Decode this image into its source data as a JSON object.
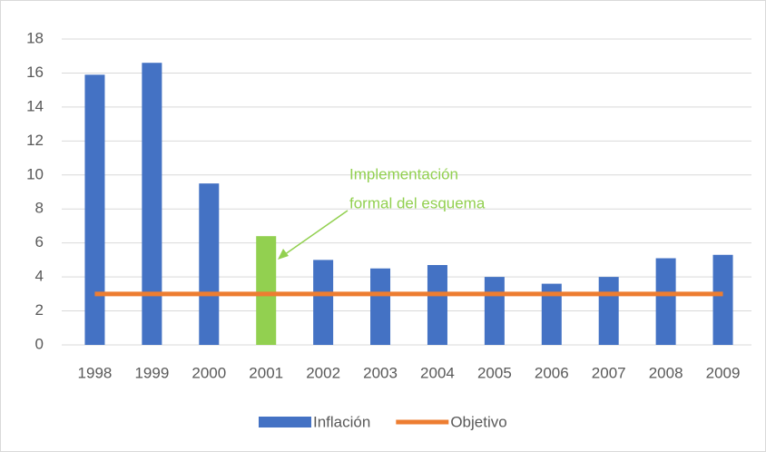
{
  "chart_data": {
    "type": "bar",
    "categories": [
      "1998",
      "1999",
      "2000",
      "2001",
      "2002",
      "2003",
      "2004",
      "2005",
      "2006",
      "2007",
      "2008",
      "2009"
    ],
    "series": [
      {
        "name": "Inflación",
        "type": "bar",
        "color": "#4472c4",
        "point_colors": [
          "#4472c4",
          "#4472c4",
          "#4472c4",
          "#92d050",
          "#4472c4",
          "#4472c4",
          "#4472c4",
          "#4472c4",
          "#4472c4",
          "#4472c4",
          "#4472c4",
          "#4472c4"
        ],
        "values": [
          15.9,
          16.6,
          9.5,
          6.4,
          5.0,
          4.5,
          4.7,
          4.0,
          3.6,
          4.0,
          5.1,
          5.3
        ]
      },
      {
        "name": "Objetivo",
        "type": "line",
        "color": "#ed7d31",
        "values": [
          3,
          3,
          3,
          3,
          3,
          3,
          3,
          3,
          3,
          3,
          3,
          3
        ]
      }
    ],
    "annotation": {
      "lines": [
        "Implementación",
        "formal del esquema"
      ],
      "color": "#92d050"
    },
    "ylim": [
      0,
      18
    ],
    "yticks": [
      0,
      2,
      4,
      6,
      8,
      10,
      12,
      14,
      16,
      18
    ],
    "grid": true,
    "legend": "bottom"
  }
}
